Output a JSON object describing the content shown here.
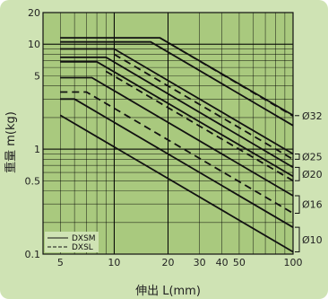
{
  "chart_data": {
    "type": "line",
    "title": "",
    "xlabel": "伸出 L(mm)",
    "ylabel": "重量 m(kg)",
    "x_scale": "log",
    "y_scale": "log",
    "xlim": [
      4,
      100
    ],
    "ylim": [
      0.1,
      20
    ],
    "x_ticks": [
      {
        "value": 5,
        "label": "5"
      },
      {
        "value": 10,
        "label": "10"
      },
      {
        "value": 20,
        "label": "20"
      },
      {
        "value": 30,
        "label": "30"
      },
      {
        "value": 40,
        "label": "40"
      },
      {
        "value": 50,
        "label": "50"
      },
      {
        "value": 100,
        "label": "100"
      }
    ],
    "y_ticks": [
      {
        "value": 0.1,
        "label": "0.1"
      },
      {
        "value": 0.5,
        "label": "0.5"
      },
      {
        "value": 1,
        "label": "1"
      },
      {
        "value": 5,
        "label": "5"
      },
      {
        "value": 10,
        "label": "10"
      },
      {
        "value": 20,
        "label": "20"
      }
    ],
    "grid": true,
    "legend_position": "bottom-left",
    "legend": [
      {
        "label": "DXSM",
        "style": "solid"
      },
      {
        "label": "DXSL",
        "style": "dashed"
      }
    ],
    "bore_labels": [
      "Ø32",
      "Ø25",
      "Ø20",
      "Ø16",
      "Ø10"
    ],
    "series": [
      {
        "style": "solid",
        "bore": "Ø32",
        "points": [
          [
            5,
            11.5
          ],
          [
            18,
            11.5
          ],
          [
            100,
            2.1
          ]
        ]
      },
      {
        "style": "dashed",
        "bore": "Ø32",
        "points": [
          [
            18,
            11.5
          ],
          [
            100,
            2.07
          ]
        ]
      },
      {
        "style": "solid",
        "bore": "Ø32",
        "points": [
          [
            5,
            10.5
          ],
          [
            16,
            10.5
          ],
          [
            100,
            1.68
          ]
        ]
      },
      {
        "style": "solid",
        "bore": "Ø25",
        "points": [
          [
            5,
            9.0
          ],
          [
            10,
            9.0
          ],
          [
            100,
            0.9
          ]
        ]
      },
      {
        "style": "dashed",
        "bore": "Ø25",
        "points": [
          [
            10,
            8.0
          ],
          [
            100,
            0.8
          ]
        ]
      },
      {
        "style": "solid",
        "bore": "Ø25",
        "points": [
          [
            5,
            7.5
          ],
          [
            9,
            7.5
          ],
          [
            100,
            0.67
          ]
        ]
      },
      {
        "style": "solid",
        "bore": "Ø20",
        "points": [
          [
            5,
            6.8
          ],
          [
            8,
            6.8
          ],
          [
            100,
            0.55
          ]
        ]
      },
      {
        "style": "dashed",
        "bore": "Ø20",
        "points": [
          [
            9,
            5.5
          ],
          [
            100,
            0.5
          ]
        ]
      },
      {
        "style": "solid",
        "bore": "Ø20",
        "points": [
          [
            5,
            4.8
          ],
          [
            7.5,
            4.8
          ],
          [
            100,
            0.36
          ]
        ]
      },
      {
        "style": "dashed",
        "bore": "Ø16",
        "points": [
          [
            5,
            3.5
          ],
          [
            7,
            3.5
          ],
          [
            100,
            0.245
          ]
        ]
      },
      {
        "style": "solid",
        "bore": "Ø16",
        "points": [
          [
            5,
            3.0
          ],
          [
            6,
            3.0
          ],
          [
            100,
            0.18
          ]
        ]
      },
      {
        "style": "solid",
        "bore": "Ø10",
        "points": [
          [
            5,
            2.1
          ],
          [
            100,
            0.105
          ]
        ]
      }
    ]
  }
}
